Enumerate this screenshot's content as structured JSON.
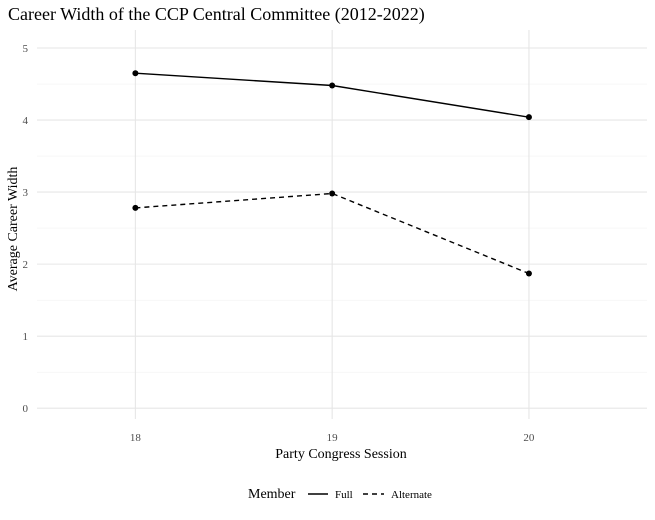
{
  "chart_data": {
    "type": "line",
    "title": "Career Width of the CCP Central Committee (2012-2022)",
    "xlabel": "Party Congress Session",
    "ylabel": "Average Career Width",
    "categories": [
      "18",
      "19",
      "20"
    ],
    "x": [
      18,
      19,
      20
    ],
    "xlim": [
      17.5,
      20.6
    ],
    "ylim": [
      -0.15,
      5.25
    ],
    "y_ticks": [
      "0",
      "1",
      "2",
      "3",
      "4",
      "5"
    ],
    "grid": true,
    "legend": {
      "title": "Member",
      "position": "bottom"
    },
    "series": [
      {
        "name": "Full",
        "linetype": "solid",
        "values": [
          4.65,
          4.48,
          4.04
        ]
      },
      {
        "name": "Alternate",
        "linetype": "dashed",
        "values": [
          2.78,
          2.98,
          1.87
        ]
      }
    ]
  }
}
